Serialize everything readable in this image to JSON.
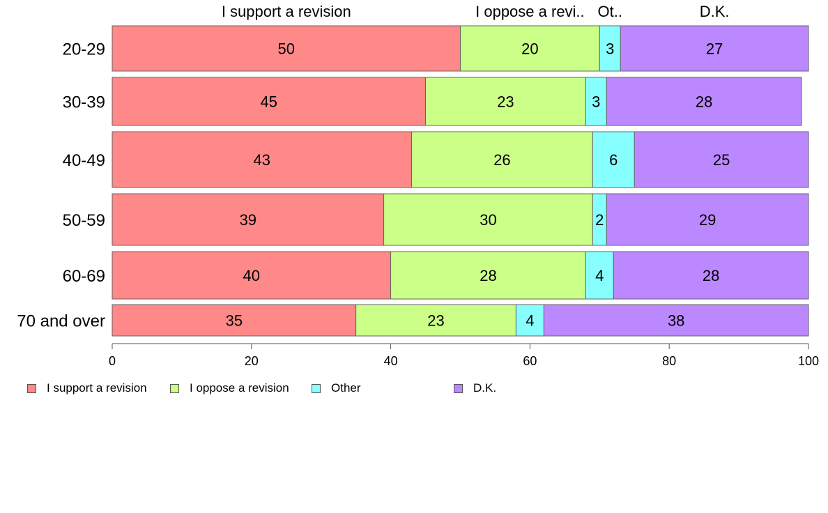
{
  "chart_data": {
    "type": "bar",
    "orientation": "horizontal",
    "stacked": true,
    "categories": [
      "20-29",
      "30-39",
      "40-49",
      "50-59",
      "60-69",
      "70 and over"
    ],
    "series": [
      {
        "name": "I support a revision",
        "color": "#ff8888",
        "values": [
          50,
          45,
          43,
          39,
          40,
          35
        ]
      },
      {
        "name": "I oppose a revision",
        "color": "#ccff88",
        "values": [
          20,
          23,
          26,
          30,
          28,
          23
        ]
      },
      {
        "name": "Other",
        "color": "#88ffff",
        "values": [
          3,
          3,
          6,
          2,
          4,
          4
        ]
      },
      {
        "name": "D.K.",
        "color": "#bb88ff",
        "values": [
          27,
          28,
          25,
          29,
          28,
          38
        ]
      }
    ],
    "top_labels": [
      "I support a revision",
      "I oppose a revi..",
      "Ot..",
      "D.K."
    ],
    "xlim": [
      0,
      100
    ],
    "xticks": [
      "0",
      "20",
      "40",
      "60",
      "80",
      "100"
    ],
    "grid": false,
    "legend_position": "bottom"
  }
}
